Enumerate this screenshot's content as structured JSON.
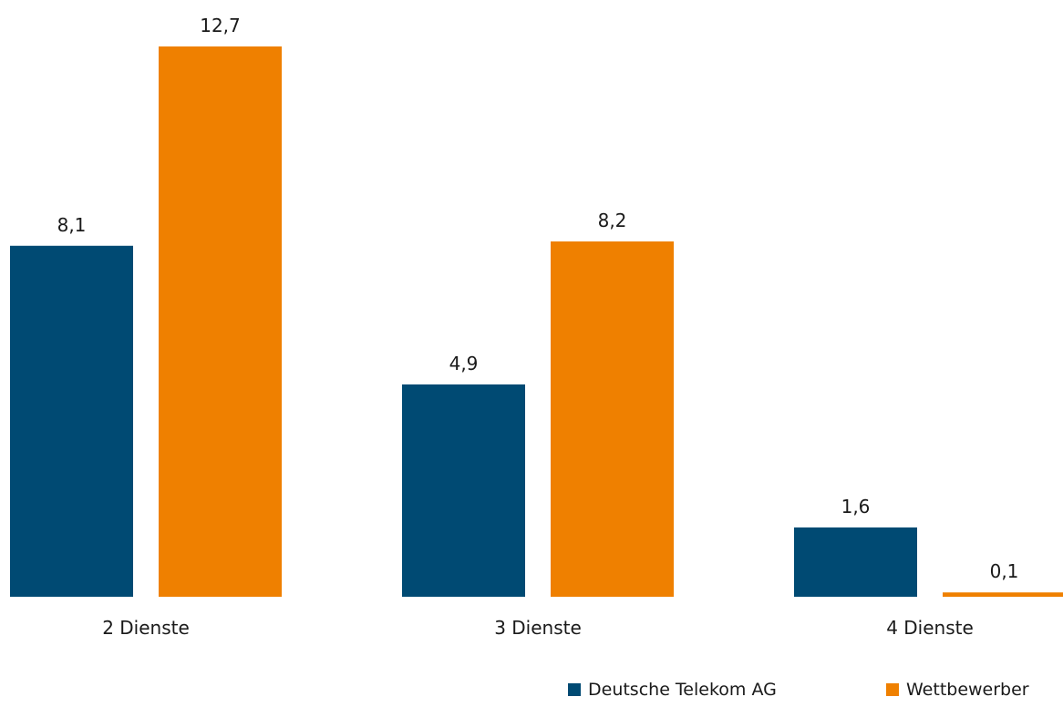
{
  "chart_data": {
    "type": "bar",
    "categories": [
      "2 Dienste",
      "3 Dienste",
      "4 Dienste"
    ],
    "series": [
      {
        "name": "Deutsche Telekom AG",
        "values": [
          8.1,
          4.9,
          1.6
        ],
        "labels": [
          "8,1",
          "4,9",
          "1,6"
        ],
        "color": "#004a73"
      },
      {
        "name": "Wettbewerber",
        "values": [
          12.7,
          8.2,
          0.1
        ],
        "labels": [
          "12,7",
          "8,2",
          "0,1"
        ],
        "color": "#ef8000"
      }
    ],
    "ylim": [
      0,
      12.7
    ],
    "grid": false,
    "legend_position": "bottom-right"
  }
}
